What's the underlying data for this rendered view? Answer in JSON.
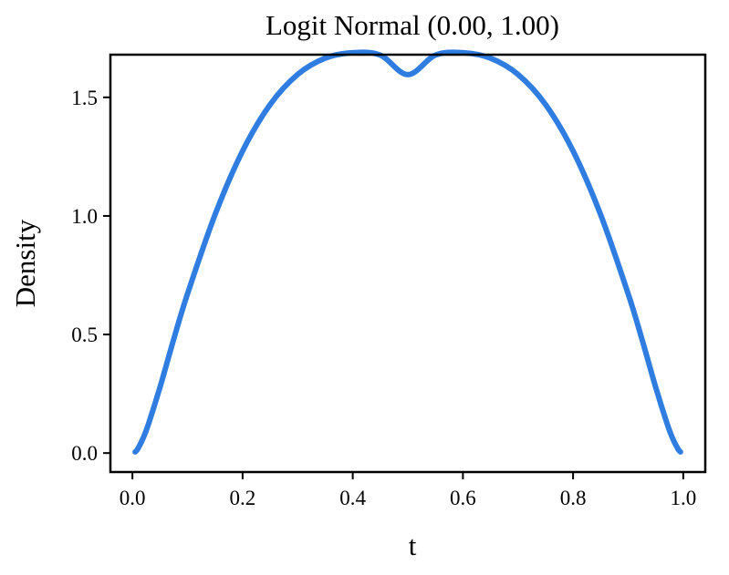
{
  "chart_data": {
    "type": "line",
    "title": "Logit Normal (0.00, 1.00)",
    "xlabel": "t",
    "ylabel": "Density",
    "xlim": [
      -0.04,
      1.04
    ],
    "ylim": [
      -0.08,
      1.68
    ],
    "xticks": [
      0.0,
      0.2,
      0.4,
      0.6,
      0.8,
      1.0
    ],
    "xtick_labels": [
      "0.0",
      "0.2",
      "0.4",
      "0.6",
      "0.8",
      "1.0"
    ],
    "yticks": [
      0.0,
      0.5,
      1.0,
      1.5
    ],
    "ytick_labels": [
      "0.0",
      "0.5",
      "1.0",
      "1.5"
    ],
    "grid": false,
    "series": [
      {
        "color": "#2f7de1",
        "x": [
          0.005,
          0.01,
          0.02,
          0.03,
          0.05,
          0.075,
          0.1,
          0.15,
          0.2,
          0.25,
          0.3,
          0.35,
          0.4,
          0.45,
          0.5,
          0.55,
          0.6,
          0.65,
          0.7,
          0.75,
          0.8,
          0.85,
          0.9,
          0.925,
          0.95,
          0.97,
          0.98,
          0.99,
          0.995
        ],
        "y": [
          0.0048,
          0.0189,
          0.0659,
          0.1289,
          0.2773,
          0.4804,
          0.6715,
          1.0052,
          1.2738,
          1.4696,
          1.5966,
          1.6652,
          1.6883,
          1.678,
          1.5958,
          1.678,
          1.6883,
          1.6652,
          1.5966,
          1.4696,
          1.2738,
          1.0052,
          0.6715,
          0.4804,
          0.2773,
          0.1289,
          0.0659,
          0.0189,
          0.0048
        ]
      }
    ]
  }
}
